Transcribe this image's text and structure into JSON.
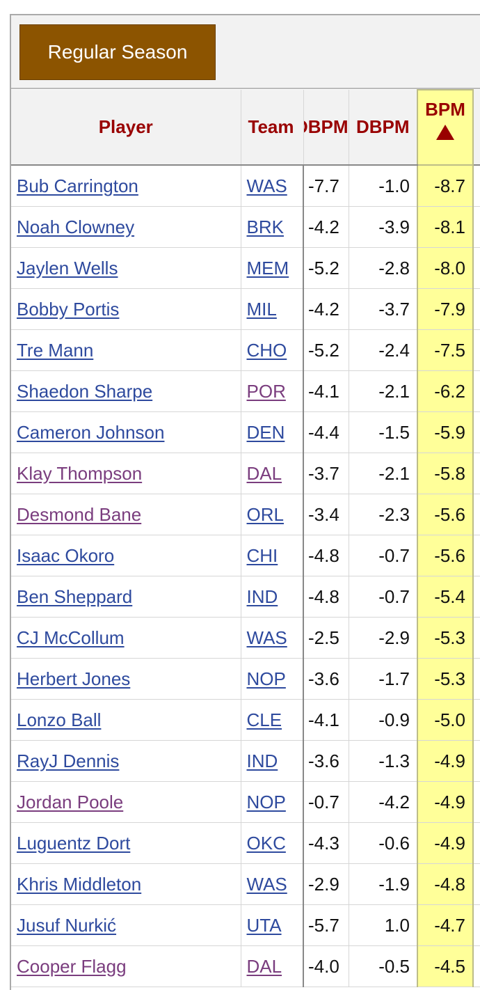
{
  "tab": {
    "label": "Regular Season"
  },
  "columns": {
    "player": "Player",
    "team": "Team",
    "obpm": "OBPM",
    "dbpm": "DBPM",
    "bpm": "BPM"
  },
  "colors": {
    "link": "#2e4a9e",
    "visited_link": "#7a3d7e",
    "tab_bg": "#8c5400",
    "header_text": "#990000",
    "sorted_col_bg": "#ffff99"
  },
  "sort": {
    "column": "BPM",
    "direction": "ascending",
    "icon": "sort-up-triangle-icon"
  },
  "rows": [
    {
      "player": "Bub Carrington",
      "team": "WAS",
      "obpm": "-7.7",
      "dbpm": "-1.0",
      "bpm": "-8.7",
      "player_visited": false,
      "team_visited": false
    },
    {
      "player": "Noah Clowney",
      "team": "BRK",
      "obpm": "-4.2",
      "dbpm": "-3.9",
      "bpm": "-8.1",
      "player_visited": false,
      "team_visited": false
    },
    {
      "player": "Jaylen Wells",
      "team": "MEM",
      "obpm": "-5.2",
      "dbpm": "-2.8",
      "bpm": "-8.0",
      "player_visited": false,
      "team_visited": false
    },
    {
      "player": "Bobby Portis",
      "team": "MIL",
      "obpm": "-4.2",
      "dbpm": "-3.7",
      "bpm": "-7.9",
      "player_visited": false,
      "team_visited": false
    },
    {
      "player": "Tre Mann",
      "team": "CHO",
      "obpm": "-5.2",
      "dbpm": "-2.4",
      "bpm": "-7.5",
      "player_visited": false,
      "team_visited": false
    },
    {
      "player": "Shaedon Sharpe",
      "team": "POR",
      "obpm": "-4.1",
      "dbpm": "-2.1",
      "bpm": "-6.2",
      "player_visited": false,
      "team_visited": true
    },
    {
      "player": "Cameron Johnson",
      "team": "DEN",
      "obpm": "-4.4",
      "dbpm": "-1.5",
      "bpm": "-5.9",
      "player_visited": false,
      "team_visited": false
    },
    {
      "player": "Klay Thompson",
      "team": "DAL",
      "obpm": "-3.7",
      "dbpm": "-2.1",
      "bpm": "-5.8",
      "player_visited": true,
      "team_visited": true
    },
    {
      "player": "Desmond Bane",
      "team": "ORL",
      "obpm": "-3.4",
      "dbpm": "-2.3",
      "bpm": "-5.6",
      "player_visited": true,
      "team_visited": false
    },
    {
      "player": "Isaac Okoro",
      "team": "CHI",
      "obpm": "-4.8",
      "dbpm": "-0.7",
      "bpm": "-5.6",
      "player_visited": false,
      "team_visited": false
    },
    {
      "player": "Ben Sheppard",
      "team": "IND",
      "obpm": "-4.8",
      "dbpm": "-0.7",
      "bpm": "-5.4",
      "player_visited": false,
      "team_visited": false
    },
    {
      "player": "CJ McCollum",
      "team": "WAS",
      "obpm": "-2.5",
      "dbpm": "-2.9",
      "bpm": "-5.3",
      "player_visited": false,
      "team_visited": false
    },
    {
      "player": "Herbert Jones",
      "team": "NOP",
      "obpm": "-3.6",
      "dbpm": "-1.7",
      "bpm": "-5.3",
      "player_visited": false,
      "team_visited": false
    },
    {
      "player": "Lonzo Ball",
      "team": "CLE",
      "obpm": "-4.1",
      "dbpm": "-0.9",
      "bpm": "-5.0",
      "player_visited": false,
      "team_visited": false
    },
    {
      "player": "RayJ Dennis",
      "team": "IND",
      "obpm": "-3.6",
      "dbpm": "-1.3",
      "bpm": "-4.9",
      "player_visited": false,
      "team_visited": false
    },
    {
      "player": "Jordan Poole",
      "team": "NOP",
      "obpm": "-0.7",
      "dbpm": "-4.2",
      "bpm": "-4.9",
      "player_visited": true,
      "team_visited": false
    },
    {
      "player": "Luguentz Dort",
      "team": "OKC",
      "obpm": "-4.3",
      "dbpm": "-0.6",
      "bpm": "-4.9",
      "player_visited": false,
      "team_visited": false
    },
    {
      "player": "Khris Middleton",
      "team": "WAS",
      "obpm": "-2.9",
      "dbpm": "-1.9",
      "bpm": "-4.8",
      "player_visited": false,
      "team_visited": false
    },
    {
      "player": "Jusuf Nurkić",
      "team": "UTA",
      "obpm": "-5.7",
      "dbpm": "1.0",
      "bpm": "-4.7",
      "player_visited": false,
      "team_visited": false
    },
    {
      "player": "Cooper Flagg",
      "team": "DAL",
      "obpm": "-4.0",
      "dbpm": "-0.5",
      "bpm": "-4.5",
      "player_visited": true,
      "team_visited": true
    }
  ]
}
